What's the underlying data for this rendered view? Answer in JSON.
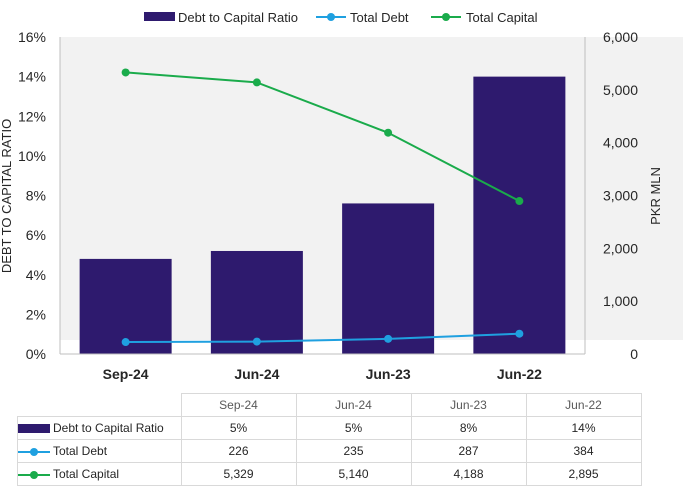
{
  "chart_data": {
    "type": "bar",
    "categories": [
      "Sep-24",
      "Jun-24",
      "Jun-23",
      "Jun-22"
    ],
    "series": [
      {
        "name": "Debt to Capital Ratio",
        "type": "bar",
        "axis": "left",
        "values": [
          4.8,
          5.2,
          7.6,
          14.0
        ],
        "display": [
          "5%",
          "5%",
          "8%",
          "14%"
        ],
        "color": "#2e1a6e"
      },
      {
        "name": "Total Debt",
        "type": "line",
        "axis": "right",
        "values": [
          226,
          235,
          287,
          384
        ],
        "display": [
          "226",
          "235",
          "287",
          "384"
        ],
        "color": "#1fa0e0"
      },
      {
        "name": "Total Capital",
        "type": "line",
        "axis": "right",
        "values": [
          5329,
          5140,
          4188,
          2895
        ],
        "display": [
          "5,329",
          "5,140",
          "4,188",
          "2,895"
        ],
        "color": "#1aab4b"
      }
    ],
    "ylabel": "DEBT TO CAPITAL RATIO",
    "y2label": "PKR MLN",
    "ylim": [
      0,
      16
    ],
    "y2lim": [
      0,
      6000
    ],
    "yticks": [
      "0%",
      "2%",
      "4%",
      "6%",
      "8%",
      "10%",
      "12%",
      "14%",
      "16%"
    ],
    "y2ticks": [
      "0",
      "1,000",
      "2,000",
      "3,000",
      "4,000",
      "5,000",
      "6,000"
    ],
    "legend": "top",
    "grid": false,
    "data_table": true
  }
}
